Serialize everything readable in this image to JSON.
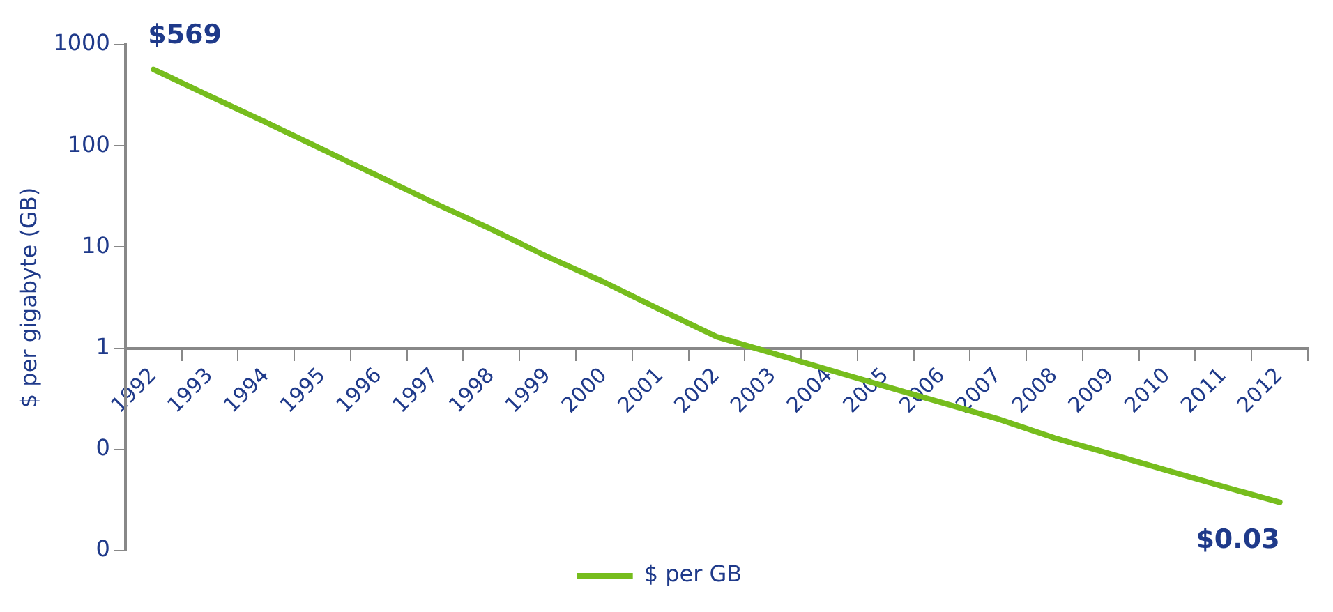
{
  "chart_data": {
    "type": "line",
    "ylabel": "$ per gigabyte (GB)",
    "log": "y",
    "legend": "bottom",
    "grid": false,
    "marker": "none",
    "line_style": "solid",
    "categories": [
      "1992",
      "1993",
      "1994",
      "1995",
      "1996",
      "1997",
      "1998",
      "1999",
      "2000",
      "2001",
      "2002",
      "2003",
      "2004",
      "2005",
      "2006",
      "2007",
      "2008",
      "2009",
      "2010",
      "2011",
      "2012"
    ],
    "series": [
      {
        "name": "$ per GB",
        "color": "#76bd1d",
        "values": [
          569,
          310,
          170,
          92,
          50,
          27,
          15,
          8,
          4.5,
          2.4,
          1.3,
          0.89,
          0.61,
          0.42,
          0.29,
          0.2,
          0.13,
          0.09,
          0.062,
          0.043,
          0.03
        ]
      }
    ],
    "ylim": [
      0.01,
      1000
    ],
    "yticks": [
      {
        "value": 0.01,
        "label": "0"
      },
      {
        "value": 0.1,
        "label": "0"
      },
      1,
      10,
      100,
      1000
    ],
    "annotations": [
      {
        "text": "$569",
        "x": "1992",
        "y": 569
      },
      {
        "text": "$0.03",
        "x": "2012",
        "y": 0.03
      }
    ]
  }
}
